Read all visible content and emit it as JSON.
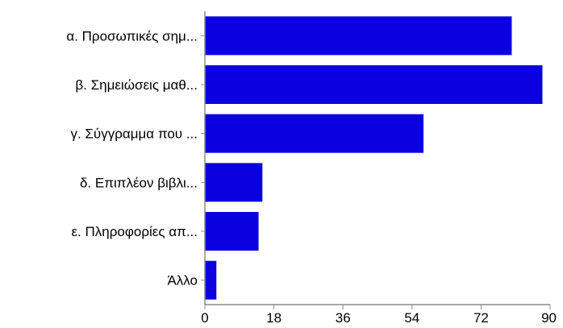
{
  "chart_data": {
    "type": "bar",
    "orientation": "horizontal",
    "categories": [
      "α. Προσωπικές σημ...",
      "β. Σημειώσεις μαθ...",
      "γ. Σύγγραμμα που ...",
      "δ. Επιπλέον βιβλι...",
      "ε. Πληροφορίες απ...",
      "Άλλο"
    ],
    "values": [
      80,
      88,
      57,
      15,
      14,
      3
    ],
    "xlim": [
      0,
      90
    ],
    "xticks": [
      0,
      18,
      36,
      54,
      72,
      90
    ],
    "xtick_labels": [
      "0",
      "18",
      "36",
      "54",
      "72",
      "90"
    ],
    "title": "",
    "xlabel": "",
    "ylabel": "",
    "grid": false,
    "legend": "none",
    "bar_color": "#0b00e0",
    "axis_color": "#8c8c8c"
  }
}
